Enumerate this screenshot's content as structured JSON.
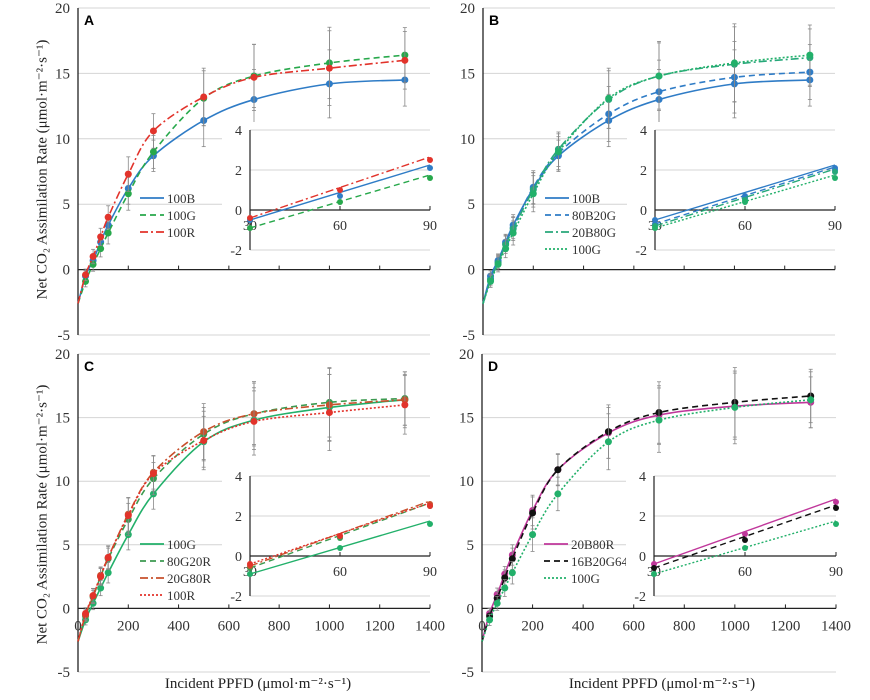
{
  "y_axis_label": "Net CO₂ Assimilation Rate (μmol·m⁻²·s⁻¹)",
  "x_axis_label": "Incident PPFD (μmol·m⁻²·s⁻¹)",
  "colors": {
    "100B": "#2f7cc6",
    "100G_dashed": "#27a84b",
    "100R": "#e2332b",
    "80B20G": "#2f7cc6",
    "20B80G": "#27a87a",
    "100G_dotted": "#22b06a",
    "80G20R": "#3c9a50",
    "20G80R": "#c8502c",
    "20B80R": "#c0379b",
    "16B20G64R": "#111111"
  },
  "chart_data": [
    {
      "panel": "A",
      "type": "line",
      "xlim": [
        0,
        1400
      ],
      "ylim": [
        -5,
        20
      ],
      "yticks": [
        -5,
        0,
        5,
        10,
        15,
        20
      ],
      "xticks": [
        0,
        200,
        400,
        600,
        800,
        1000,
        1200,
        1400
      ],
      "grid": true,
      "legend": "center-left",
      "x": [
        30,
        60,
        90,
        120,
        200,
        300,
        500,
        700,
        1000,
        1300
      ],
      "error_bars": [
        0.4,
        0.5,
        0.6,
        0.8,
        1.2,
        1.2,
        2.0,
        2.3,
        2.6,
        2.0
      ],
      "inset": {
        "xlim": [
          30,
          90
        ],
        "ylim": [
          -2,
          4
        ],
        "xticks": [
          30,
          60,
          90
        ],
        "yticks": [
          -2,
          0,
          2,
          4
        ]
      },
      "series": [
        {
          "name": "100B",
          "color": "#2f7cc6",
          "dash": "solid",
          "values": [
            -0.5,
            0.7,
            2.1,
            3.4,
            6.2,
            8.7,
            11.4,
            13.0,
            14.2,
            14.5
          ]
        },
        {
          "name": "100G",
          "color": "#27a84b",
          "dash": "dashed",
          "values": [
            -0.9,
            0.4,
            1.6,
            2.8,
            5.8,
            9.0,
            13.1,
            14.8,
            15.8,
            16.4
          ]
        },
        {
          "name": "100R",
          "color": "#e2332b",
          "dash": "dashdot",
          "values": [
            -0.4,
            1.0,
            2.5,
            4.0,
            7.3,
            10.6,
            13.2,
            14.7,
            15.4,
            16.0
          ]
        }
      ]
    },
    {
      "panel": "B",
      "type": "line",
      "xlim": [
        0,
        1400
      ],
      "ylim": [
        -5,
        20
      ],
      "yticks": [
        -5,
        0,
        5,
        10,
        15,
        20
      ],
      "xticks": [
        0,
        200,
        400,
        600,
        800,
        1000,
        1200,
        1400
      ],
      "grid": true,
      "legend": "center-left",
      "x": [
        30,
        60,
        90,
        120,
        200,
        300,
        500,
        700,
        1000,
        1300
      ],
      "error_bars": [
        0.4,
        0.5,
        0.6,
        0.8,
        1.2,
        1.2,
        2.0,
        2.3,
        2.6,
        2.0
      ],
      "inset": {
        "xlim": [
          30,
          90
        ],
        "ylim": [
          -2,
          4
        ],
        "xticks": [
          30,
          60,
          90
        ],
        "yticks": [
          -2,
          0,
          2,
          4
        ]
      },
      "series": [
        {
          "name": "100B",
          "color": "#2f7cc6",
          "dash": "solid",
          "values": [
            -0.5,
            0.7,
            2.1,
            3.4,
            6.2,
            8.7,
            11.4,
            13.0,
            14.2,
            14.5
          ]
        },
        {
          "name": "80B20G",
          "color": "#2f7cc6",
          "dash": "dashed",
          "values": [
            -0.7,
            0.6,
            2.0,
            3.2,
            6.3,
            8.9,
            11.9,
            13.6,
            14.7,
            15.1
          ]
        },
        {
          "name": "20B80G",
          "color": "#27a87a",
          "dash": "dashdot",
          "values": [
            -0.8,
            0.5,
            1.9,
            3.1,
            6.1,
            9.2,
            13.0,
            14.8,
            15.7,
            16.2
          ]
        },
        {
          "name": "100G",
          "color": "#22b06a",
          "dash": "dotted",
          "values": [
            -0.9,
            0.4,
            1.6,
            2.8,
            5.8,
            9.0,
            13.1,
            14.8,
            15.8,
            16.4
          ]
        }
      ]
    },
    {
      "panel": "C",
      "type": "line",
      "xlim": [
        0,
        1400
      ],
      "ylim": [
        -5,
        20
      ],
      "yticks": [
        -5,
        0,
        5,
        10,
        15,
        20
      ],
      "xticks": [
        0,
        200,
        400,
        600,
        800,
        1000,
        1200,
        1400
      ],
      "grid": true,
      "legend": "center-left",
      "x": [
        30,
        60,
        90,
        120,
        200,
        300,
        500,
        700,
        1000,
        1300
      ],
      "error_bars": [
        0.4,
        0.5,
        0.6,
        0.8,
        1.2,
        1.2,
        2.0,
        2.3,
        2.6,
        2.0
      ],
      "inset": {
        "xlim": [
          30,
          90
        ],
        "ylim": [
          -2,
          4
        ],
        "xticks": [
          30,
          60,
          90
        ],
        "yticks": [
          -2,
          0,
          2,
          4
        ]
      },
      "series": [
        {
          "name": "100G",
          "color": "#22b06a",
          "dash": "solid",
          "values": [
            -0.9,
            0.4,
            1.6,
            2.8,
            5.8,
            9.0,
            13.1,
            14.8,
            15.8,
            16.4
          ]
        },
        {
          "name": "80G20R",
          "color": "#3c9a50",
          "dash": "dashed",
          "values": [
            -0.6,
            0.9,
            2.5,
            3.9,
            7.0,
            10.2,
            13.7,
            15.3,
            16.2,
            16.5
          ]
        },
        {
          "name": "20G80R",
          "color": "#c8502c",
          "dash": "dashdot",
          "values": [
            -0.5,
            1.0,
            2.6,
            4.0,
            7.4,
            10.7,
            13.9,
            15.3,
            16.0,
            16.4
          ]
        },
        {
          "name": "100R",
          "color": "#e2332b",
          "dash": "dotted",
          "values": [
            -0.4,
            1.0,
            2.5,
            4.0,
            7.3,
            10.6,
            13.2,
            14.7,
            15.4,
            16.0
          ]
        }
      ]
    },
    {
      "panel": "D",
      "type": "line",
      "xlim": [
        0,
        1400
      ],
      "ylim": [
        -5,
        20
      ],
      "yticks": [
        -5,
        0,
        5,
        10,
        15,
        20
      ],
      "xticks": [
        0,
        200,
        400,
        600,
        800,
        1000,
        1200,
        1400
      ],
      "grid": true,
      "legend": "center-left",
      "x": [
        30,
        60,
        90,
        120,
        200,
        300,
        500,
        700,
        1000,
        1300
      ],
      "error_bars": [
        0.4,
        0.5,
        0.6,
        0.8,
        1.2,
        1.2,
        2.0,
        2.3,
        2.6,
        2.0
      ],
      "inset": {
        "xlim": [
          30,
          90
        ],
        "ylim": [
          -2,
          4
        ],
        "xticks": [
          30,
          60,
          90
        ],
        "yticks": [
          -2,
          0,
          2,
          4
        ]
      },
      "series": [
        {
          "name": "20B80R",
          "color": "#c0379b",
          "dash": "solid",
          "values": [
            -0.4,
            1.1,
            2.7,
            4.2,
            7.7,
            10.9,
            13.8,
            15.2,
            15.9,
            16.2
          ]
        },
        {
          "name": "16B20G64R",
          "color": "#111111",
          "dash": "dashed",
          "values": [
            -0.6,
            0.8,
            2.4,
            3.9,
            7.5,
            10.9,
            13.9,
            15.4,
            16.2,
            16.7
          ]
        },
        {
          "name": "100G",
          "color": "#22b06a",
          "dash": "dotted",
          "values": [
            -0.9,
            0.4,
            1.6,
            2.8,
            5.8,
            9.0,
            13.1,
            14.8,
            15.8,
            16.4
          ]
        }
      ]
    }
  ]
}
